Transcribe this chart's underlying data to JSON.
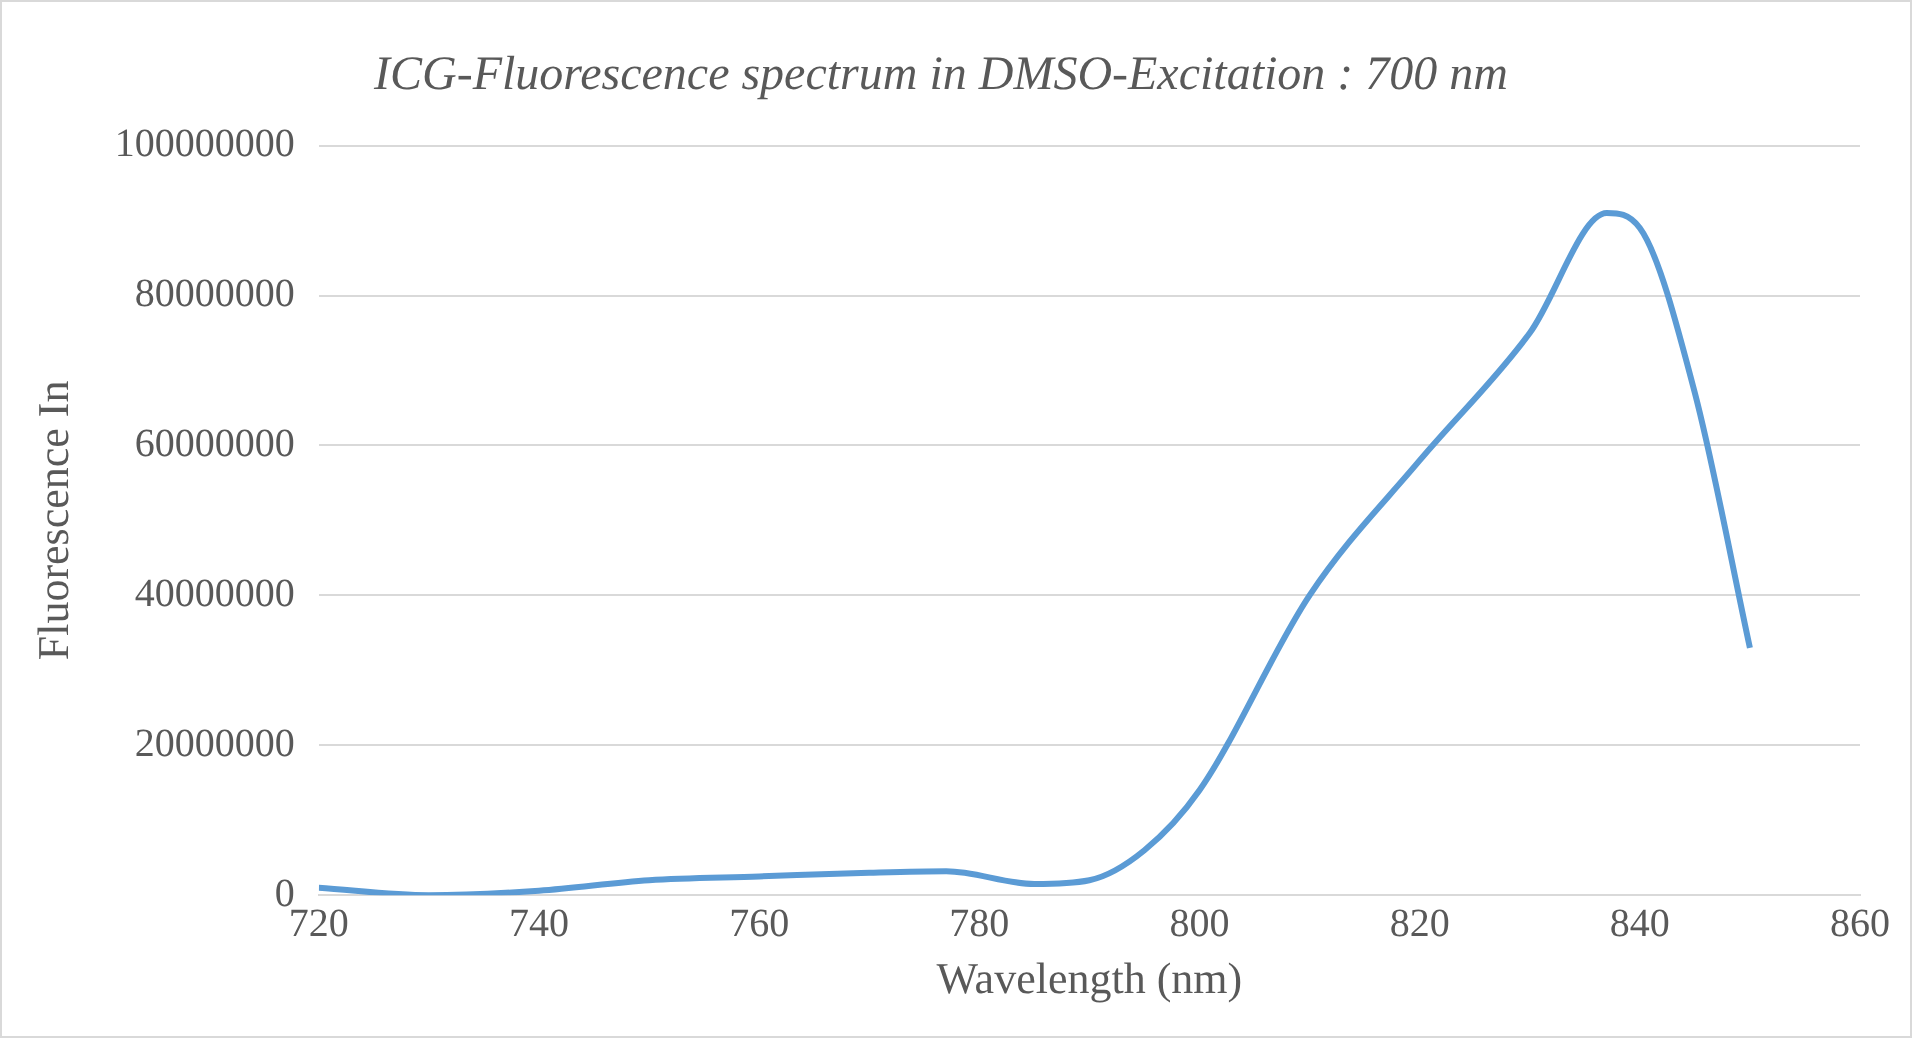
{
  "chart_data": {
    "type": "line",
    "title": "ICG-Fluorescence spectrum in DMSO-Excitation : 700 nm",
    "xlabel": "Wavelength (nm)",
    "ylabel": "Fluorescence In",
    "x": [
      720,
      730,
      740,
      750,
      760,
      770,
      777,
      785,
      790,
      795,
      800,
      810,
      820,
      830,
      837,
      840,
      845,
      850
    ],
    "series": [
      {
        "color": "#5b9bd5",
        "values": [
          1000000,
          0,
          600000,
          2000000,
          2500000,
          3000000,
          3200000,
          1500000,
          2000000,
          6000000,
          14000000,
          40000000,
          58000000,
          75000000,
          91000000,
          89000000,
          67000000,
          33000000
        ]
      }
    ],
    "xlim": [
      720,
      860
    ],
    "xticks": [
      720,
      740,
      760,
      780,
      800,
      820,
      840,
      860
    ],
    "ylim": [
      0,
      100000000
    ],
    "yticks": [
      0,
      20000000,
      40000000,
      60000000,
      80000000,
      100000000
    ],
    "grid": "y",
    "legend": false,
    "marker": "none",
    "line_style": "solid"
  }
}
